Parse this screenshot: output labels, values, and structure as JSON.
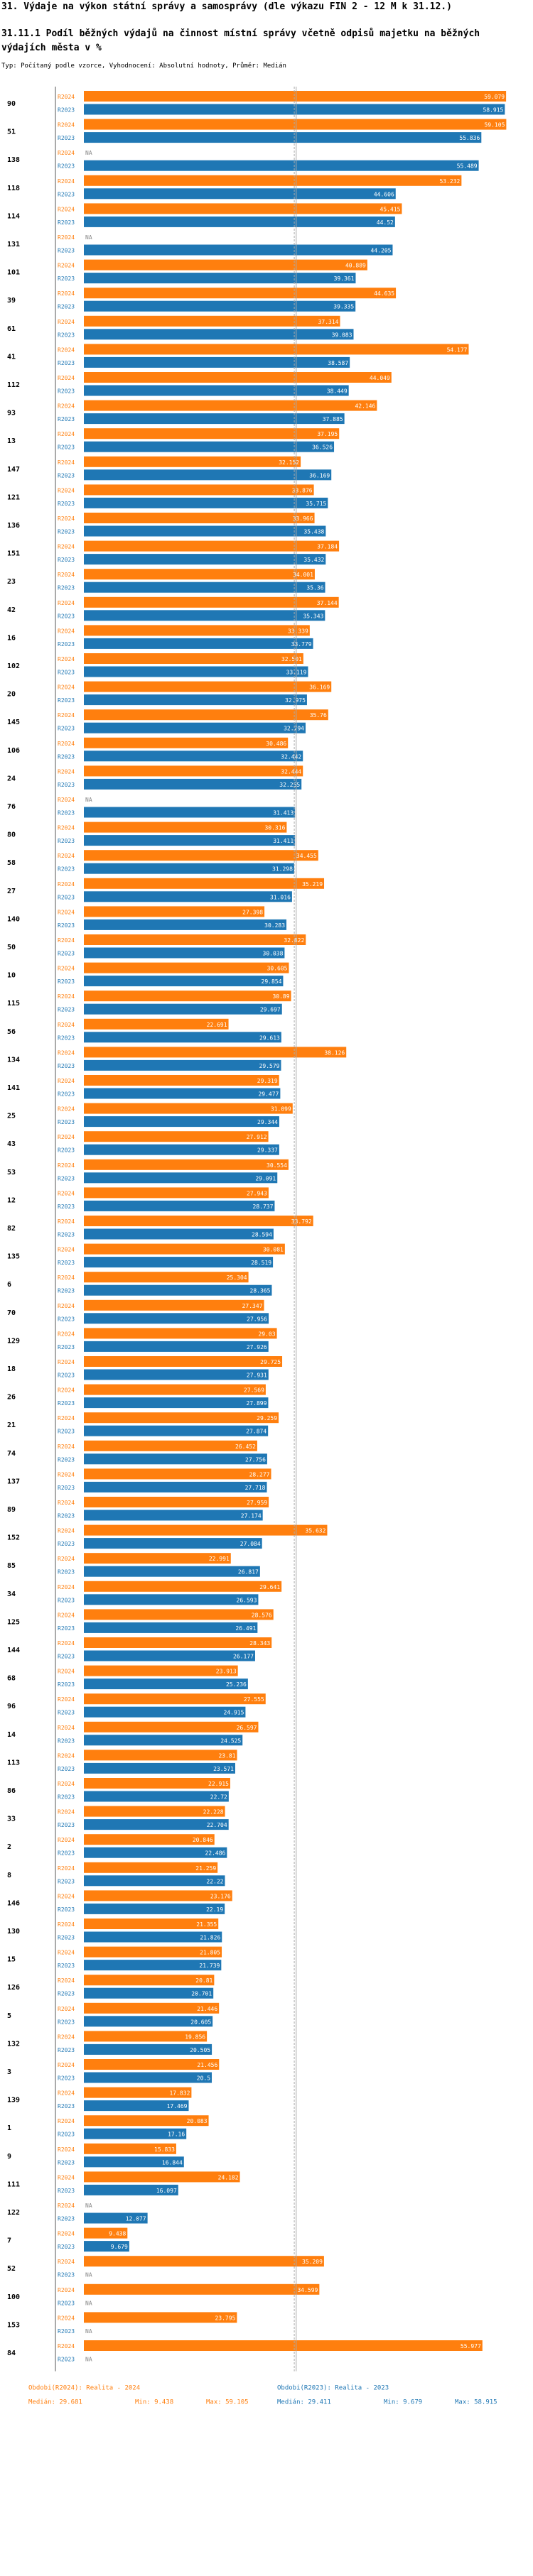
{
  "title": "31. Výdaje na výkon státní správy a samosprávy (dle výkazu FIN 2 - 12 M k 31.12.)",
  "subtitle": "31.11.1 Podíl běžných výdajů na činnost místní správy včetně odpisů majetku na běžných výdajích města v %",
  "note": "Typ: Počítaný podle vzorce, Vyhodnocení: Absolutní hodnoty, Průměr: Medián",
  "chart_data": {
    "type": "bar",
    "orientation": "horizontal",
    "xlim": [
      0,
      60
    ],
    "colors": {
      "r2024": "#ff7f0e",
      "r2023": "#1f77b4",
      "median_line": "#aaaaaa"
    },
    "series_labels": [
      "R2024",
      "R2023"
    ],
    "na_label": "NA",
    "rows": [
      {
        "id": "90",
        "r2024": 59.079,
        "r2023": 58.915,
        "l2024": "59.079",
        "l2023": "58.915"
      },
      {
        "id": "51",
        "r2024": 59.105,
        "r2023": 55.836,
        "l2024": "59.105",
        "l2023": "55.836"
      },
      {
        "id": "138",
        "r2024": null,
        "r2023": 55.489,
        "l2024": null,
        "l2023": "55.489"
      },
      {
        "id": "118",
        "r2024": 53.232,
        "r2023": 44.606,
        "l2024": "53.232",
        "l2023": "44.606"
      },
      {
        "id": "114",
        "r2024": 45.415,
        "r2023": 44.52,
        "l2024": "45.415",
        "l2023": "44.52"
      },
      {
        "id": "131",
        "r2024": null,
        "r2023": 44.205,
        "l2024": null,
        "l2023": "44.205"
      },
      {
        "id": "101",
        "r2024": 40.889,
        "r2023": 39.361,
        "l2024": "40.889",
        "l2023": "39.361"
      },
      {
        "id": "39",
        "r2024": 44.635,
        "r2023": 39.335,
        "l2024": "44.635",
        "l2023": "39.335"
      },
      {
        "id": "61",
        "r2024": 37.314,
        "r2023": 39.083,
        "l2024": "37.314",
        "l2023": "39.083"
      },
      {
        "id": "41",
        "r2024": 54.177,
        "r2023": 38.587,
        "l2024": "54.177",
        "l2023": "38.587"
      },
      {
        "id": "112",
        "r2024": 44.049,
        "r2023": 38.449,
        "l2024": "44.049",
        "l2023": "38.449"
      },
      {
        "id": "93",
        "r2024": 42.146,
        "r2023": 37.885,
        "l2024": "42.146",
        "l2023": "37.885"
      },
      {
        "id": "13",
        "r2024": 37.195,
        "r2023": 36.526,
        "l2024": "37.195",
        "l2023": "36.526"
      },
      {
        "id": "147",
        "r2024": 32.152,
        "r2023": 36.169,
        "l2024": "32.152",
        "l2023": "36.169"
      },
      {
        "id": "121",
        "r2024": 33.876,
        "r2023": 35.715,
        "l2024": "33.876",
        "l2023": "35.715"
      },
      {
        "id": "136",
        "r2024": 33.966,
        "r2023": 35.438,
        "l2024": "33.966",
        "l2023": "35.438"
      },
      {
        "id": "151",
        "r2024": 37.184,
        "r2023": 35.432,
        "l2024": "37.184",
        "l2023": "35.432"
      },
      {
        "id": "23",
        "r2024": 34.001,
        "r2023": 35.36,
        "l2024": "34.001",
        "l2023": "35.36"
      },
      {
        "id": "42",
        "r2024": 37.144,
        "r2023": 35.343,
        "l2024": "37.144",
        "l2023": "35.343"
      },
      {
        "id": "16",
        "r2024": 33.339,
        "r2023": 33.779,
        "l2024": "33.339",
        "l2023": "33.779"
      },
      {
        "id": "102",
        "r2024": 32.501,
        "r2023": 33.119,
        "l2024": "32.501",
        "l2023": "33.119"
      },
      {
        "id": "20",
        "r2024": 36.169,
        "r2023": 32.975,
        "l2024": "36.169",
        "l2023": "32.975"
      },
      {
        "id": "145",
        "r2024": 35.76,
        "r2023": 32.794,
        "l2024": "35.76",
        "l2023": "32.794"
      },
      {
        "id": "106",
        "r2024": 30.486,
        "r2023": 32.442,
        "l2024": "30.486",
        "l2023": "32.442"
      },
      {
        "id": "24",
        "r2024": 32.444,
        "r2023": 32.255,
        "l2024": "32.444",
        "l2023": "32.255"
      },
      {
        "id": "76",
        "r2024": null,
        "r2023": 31.413,
        "l2024": null,
        "l2023": "31.413"
      },
      {
        "id": "80",
        "r2024": 30.316,
        "r2023": 31.411,
        "l2024": "30.316",
        "l2023": "31.411"
      },
      {
        "id": "58",
        "r2024": 34.455,
        "r2023": 31.298,
        "l2024": "34.455",
        "l2023": "31.298"
      },
      {
        "id": "27",
        "r2024": 35.219,
        "r2023": 31.016,
        "l2024": "35.219",
        "l2023": "31.016"
      },
      {
        "id": "140",
        "r2024": 27.398,
        "r2023": 30.283,
        "l2024": "27.398",
        "l2023": "30.283"
      },
      {
        "id": "50",
        "r2024": 32.822,
        "r2023": 30.038,
        "l2024": "32.822",
        "l2023": "30.038"
      },
      {
        "id": "10",
        "r2024": 30.605,
        "r2023": 29.854,
        "l2024": "30.605",
        "l2023": "29.854"
      },
      {
        "id": "115",
        "r2024": 30.89,
        "r2023": 29.697,
        "l2024": "30.89",
        "l2023": "29.697"
      },
      {
        "id": "56",
        "r2024": 22.691,
        "r2023": 29.613,
        "l2024": "22.691",
        "l2023": "29.613"
      },
      {
        "id": "134",
        "r2024": 38.126,
        "r2023": 29.579,
        "l2024": "38.126",
        "l2023": "29.579"
      },
      {
        "id": "141",
        "r2024": 29.319,
        "r2023": 29.477,
        "l2024": "29.319",
        "l2023": "29.477"
      },
      {
        "id": "25",
        "r2024": 31.099,
        "r2023": 29.344,
        "l2024": "31.099",
        "l2023": "29.344"
      },
      {
        "id": "43",
        "r2024": 27.912,
        "r2023": 29.337,
        "l2024": "27.912",
        "l2023": "29.337"
      },
      {
        "id": "53",
        "r2024": 30.554,
        "r2023": 29.091,
        "l2024": "30.554",
        "l2023": "29.091"
      },
      {
        "id": "12",
        "r2024": 27.943,
        "r2023": 28.737,
        "l2024": "27.943",
        "l2023": "28.737"
      },
      {
        "id": "82",
        "r2024": 33.792,
        "r2023": 28.594,
        "l2024": "33.792",
        "l2023": "28.594"
      },
      {
        "id": "135",
        "r2024": 30.081,
        "r2023": 28.519,
        "l2024": "30.081",
        "l2023": "28.519"
      },
      {
        "id": "6",
        "r2024": 25.304,
        "r2023": 28.365,
        "l2024": "25.304",
        "l2023": "28.365"
      },
      {
        "id": "70",
        "r2024": 27.347,
        "r2023": 27.956,
        "l2024": "27.347",
        "l2023": "27.956"
      },
      {
        "id": "129",
        "r2024": 29.03,
        "r2023": 27.926,
        "l2024": "29.03",
        "l2023": "27.926"
      },
      {
        "id": "18",
        "r2024": 29.725,
        "r2023": 27.931,
        "l2024": "29.725",
        "l2023": "27.931"
      },
      {
        "id": "26",
        "r2024": 27.569,
        "r2023": 27.899,
        "l2024": "27.569",
        "l2023": "27.899"
      },
      {
        "id": "21",
        "r2024": 29.259,
        "r2023": 27.874,
        "l2024": "29.259",
        "l2023": "27.874"
      },
      {
        "id": "74",
        "r2024": 26.452,
        "r2023": 27.756,
        "l2024": "26.452",
        "l2023": "27.756"
      },
      {
        "id": "137",
        "r2024": 28.277,
        "r2023": 27.718,
        "l2024": "28.277",
        "l2023": "27.718"
      },
      {
        "id": "89",
        "r2024": 27.959,
        "r2023": 27.174,
        "l2024": "27.959",
        "l2023": "27.174"
      },
      {
        "id": "152",
        "r2024": 35.632,
        "r2023": 27.084,
        "l2024": "35.632",
        "l2023": "27.084"
      },
      {
        "id": "85",
        "r2024": 22.991,
        "r2023": 26.817,
        "l2024": "22.991",
        "l2023": "26.817"
      },
      {
        "id": "34",
        "r2024": 29.641,
        "r2023": 26.593,
        "l2024": "29.641",
        "l2023": "26.593"
      },
      {
        "id": "125",
        "r2024": 28.576,
        "r2023": 26.491,
        "l2024": "28.576",
        "l2023": "26.491"
      },
      {
        "id": "144",
        "r2024": 28.343,
        "r2023": 26.177,
        "l2024": "28.343",
        "l2023": "26.177"
      },
      {
        "id": "68",
        "r2024": 23.913,
        "r2023": 25.236,
        "l2024": "23.913",
        "l2023": "25.236"
      },
      {
        "id": "96",
        "r2024": 27.555,
        "r2023": 24.915,
        "l2024": "27.555",
        "l2023": "24.915"
      },
      {
        "id": "14",
        "r2024": 26.597,
        "r2023": 24.525,
        "l2024": "26.597",
        "l2023": "24.525"
      },
      {
        "id": "113",
        "r2024": 23.81,
        "r2023": 23.571,
        "l2024": "23.81",
        "l2023": "23.571"
      },
      {
        "id": "86",
        "r2024": 22.915,
        "r2023": 22.72,
        "l2024": "22.915",
        "l2023": "22.72"
      },
      {
        "id": "33",
        "r2024": 22.228,
        "r2023": 22.704,
        "l2024": "22.228",
        "l2023": "22.704"
      },
      {
        "id": "2",
        "r2024": 20.846,
        "r2023": 22.486,
        "l2024": "20.846",
        "l2023": "22.486"
      },
      {
        "id": "8",
        "r2024": 21.259,
        "r2023": 22.22,
        "l2024": "21.259",
        "l2023": "22.22"
      },
      {
        "id": "146",
        "r2024": 23.176,
        "r2023": 22.19,
        "l2024": "23.176",
        "l2023": "22.19"
      },
      {
        "id": "130",
        "r2024": 21.355,
        "r2023": 21.826,
        "l2024": "21.355",
        "l2023": "21.826"
      },
      {
        "id": "15",
        "r2024": 21.805,
        "r2023": 21.739,
        "l2024": "21.805",
        "l2023": "21.739"
      },
      {
        "id": "126",
        "r2024": 20.81,
        "r2023": 20.701,
        "l2024": "20.81",
        "l2023": "20.701"
      },
      {
        "id": "5",
        "r2024": 21.446,
        "r2023": 20.605,
        "l2024": "21.446",
        "l2023": "20.605"
      },
      {
        "id": "132",
        "r2024": 19.856,
        "r2023": 20.505,
        "l2024": "19.856",
        "l2023": "20.505"
      },
      {
        "id": "3",
        "r2024": 21.456,
        "r2023": 20.5,
        "l2024": "21.456",
        "l2023": "20.5"
      },
      {
        "id": "139",
        "r2024": 17.832,
        "r2023": 17.469,
        "l2024": "17.832",
        "l2023": "17.469"
      },
      {
        "id": "1",
        "r2024": 20.083,
        "r2023": 17.16,
        "l2024": "20.083",
        "l2023": "17.16"
      },
      {
        "id": "9",
        "r2024": 15.833,
        "r2023": 16.844,
        "l2024": "15.833",
        "l2023": "16.844"
      },
      {
        "id": "111",
        "r2024": 24.182,
        "r2023": 16.097,
        "l2024": "24.182",
        "l2023": "16.097"
      },
      {
        "id": "122",
        "r2024": null,
        "r2023": 12.077,
        "l2024": null,
        "l2023": "12.077"
      },
      {
        "id": "7",
        "r2024": 9.438,
        "r2023": 9.679,
        "l2024": "9.438",
        "l2023": "9.679"
      },
      {
        "id": "52",
        "r2024": 35.209,
        "r2023": null,
        "l2024": "35.209",
        "l2023": null
      },
      {
        "id": "100",
        "r2024": 34.599,
        "r2023": null,
        "l2024": "34.599",
        "l2023": null
      },
      {
        "id": "153",
        "r2024": 23.795,
        "r2023": null,
        "l2024": "23.795",
        "l2023": null
      },
      {
        "id": "84",
        "r2024": 55.977,
        "r2023": null,
        "l2024": "55.977",
        "l2023": null
      }
    ],
    "medians": {
      "r2024": 29.681,
      "r2023": 29.411
    },
    "legend": [
      {
        "title": "Obdobi(R2024): Realita - 2024",
        "median": "Medián: 29.681",
        "min": "Min: 9.438",
        "max": "Max: 59.105"
      },
      {
        "title": "Obdobi(R2023): Realita - 2023",
        "median": "Medián: 29.411",
        "min": "Min: 9.679",
        "max": "Max: 58.915"
      }
    ]
  }
}
